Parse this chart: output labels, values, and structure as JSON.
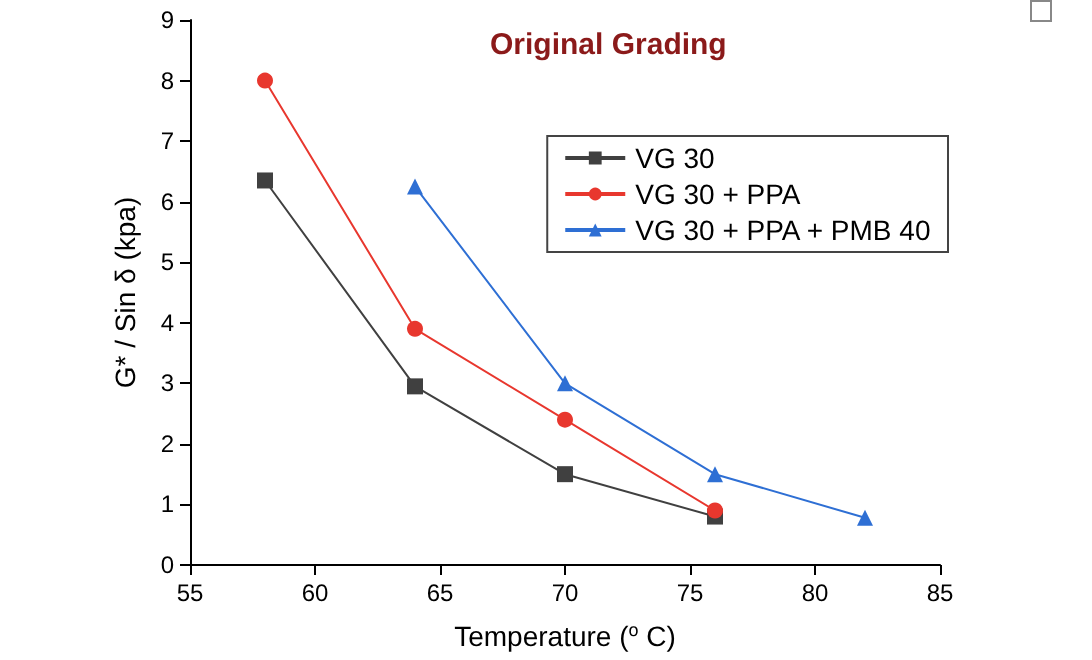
{
  "chart_data": {
    "type": "line",
    "title": "Original Grading",
    "xlabel": "Temperature ($^{o}$ C)",
    "ylabel": "G* / Sin δ (kpa)",
    "xlim": [
      55,
      85
    ],
    "xticks": [
      55,
      60,
      65,
      70,
      75,
      80,
      85
    ],
    "ylim": [
      0,
      9
    ],
    "yticks": [
      0,
      1,
      2,
      3,
      4,
      5,
      6,
      7,
      8,
      9
    ],
    "grid": false,
    "legend": "right",
    "series": [
      {
        "name": "VG 30",
        "color": "#404040",
        "marker": "square",
        "x": [
          58,
          64,
          70,
          76
        ],
        "values": [
          6.35,
          2.95,
          1.5,
          0.8
        ]
      },
      {
        "name": "VG 30 + PPA",
        "color": "#e8372e",
        "marker": "circle",
        "x": [
          58,
          64,
          70,
          76
        ],
        "values": [
          8.0,
          3.9,
          2.4,
          0.9
        ]
      },
      {
        "name": "VG 30 + PPA + PMB 40",
        "color": "#2e6fd4",
        "marker": "triangle",
        "x": [
          64,
          70,
          76,
          82
        ],
        "values": [
          6.25,
          3.0,
          1.5,
          0.78
        ]
      }
    ]
  }
}
